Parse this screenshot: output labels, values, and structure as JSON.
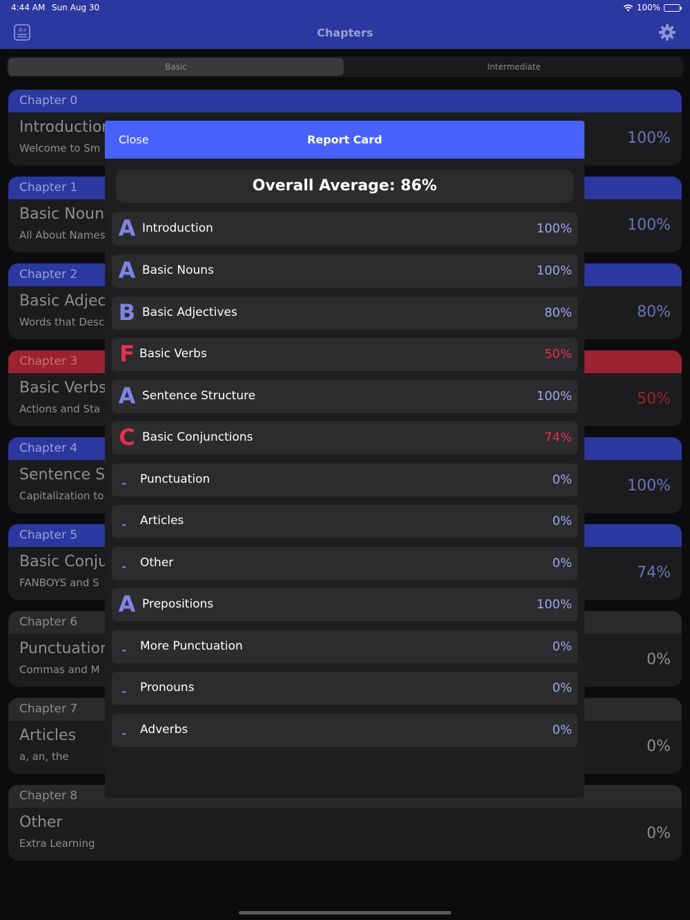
{
  "status": {
    "time": "4:44 AM",
    "date": "Sun Aug 30",
    "battery": "100%"
  },
  "nav": {
    "title": "Chapters",
    "left_icon": "quiz-icon",
    "right_icon": "gear-icon"
  },
  "segments": {
    "basic": "Basic",
    "intermediate": "Intermediate",
    "selected": "Basic"
  },
  "chapters": [
    {
      "header": "Chapter 0",
      "title": "Introduction",
      "subtitle": "Welcome to Sm",
      "score": "100%",
      "status": "blue"
    },
    {
      "header": "Chapter 1",
      "title": "Basic Nouns",
      "subtitle": "All About Names",
      "score": "100%",
      "status": "blue"
    },
    {
      "header": "Chapter 2",
      "title": "Basic Adjec",
      "subtitle": "Words that Desc",
      "score": "80%",
      "status": "blue"
    },
    {
      "header": "Chapter 3",
      "title": "Basic Verbs",
      "subtitle": "Actions and Sta",
      "score": "50%",
      "status": "red"
    },
    {
      "header": "Chapter 4",
      "title": "Sentence St",
      "subtitle": "Capitalization to",
      "score": "100%",
      "status": "blue"
    },
    {
      "header": "Chapter 5",
      "title": "Basic Conju",
      "subtitle": "FANBOYS and S",
      "score": "74%",
      "status": "blue"
    },
    {
      "header": "Chapter 6",
      "title": "Punctuation",
      "subtitle": "Commas and M",
      "score": "0%",
      "status": "gray"
    },
    {
      "header": "Chapter 7",
      "title": "Articles",
      "subtitle": "a, an, the",
      "score": "0%",
      "status": "gray"
    },
    {
      "header": "Chapter 8",
      "title": "Other",
      "subtitle": "Extra Learning",
      "score": "0%",
      "status": "gray"
    }
  ],
  "modal": {
    "close_label": "Close",
    "title": "Report Card",
    "overall": "Overall Average: 86%",
    "rows": [
      {
        "grade": "A",
        "name": "Introduction",
        "score": "100%",
        "status": "blue"
      },
      {
        "grade": "A",
        "name": "Basic Nouns",
        "score": "100%",
        "status": "blue"
      },
      {
        "grade": "B",
        "name": "Basic Adjectives",
        "score": "80%",
        "status": "blue"
      },
      {
        "grade": "F",
        "name": "Basic Verbs",
        "score": "50%",
        "status": "red"
      },
      {
        "grade": "A",
        "name": "Sentence Structure",
        "score": "100%",
        "status": "blue"
      },
      {
        "grade": "C",
        "name": "Basic Conjunctions",
        "score": "74%",
        "status": "red"
      },
      {
        "grade": "-",
        "name": "Punctuation",
        "score": "0%",
        "status": "dash"
      },
      {
        "grade": "-",
        "name": "Articles",
        "score": "0%",
        "status": "dash"
      },
      {
        "grade": "-",
        "name": "Other",
        "score": "0%",
        "status": "dash"
      },
      {
        "grade": "A",
        "name": "Prepositions",
        "score": "100%",
        "status": "blue"
      },
      {
        "grade": "-",
        "name": "More Punctuation",
        "score": "0%",
        "status": "dash"
      },
      {
        "grade": "-",
        "name": "Pronouns",
        "score": "0%",
        "status": "dash"
      },
      {
        "grade": "-",
        "name": "Adverbs",
        "score": "0%",
        "status": "dash"
      }
    ]
  },
  "colors": {
    "nav": "#2a38a0",
    "modal_header": "#4762fb",
    "grade_blue": "#7c85e0",
    "grade_red": "#e2324e",
    "chapter_red": "#9c2232"
  }
}
